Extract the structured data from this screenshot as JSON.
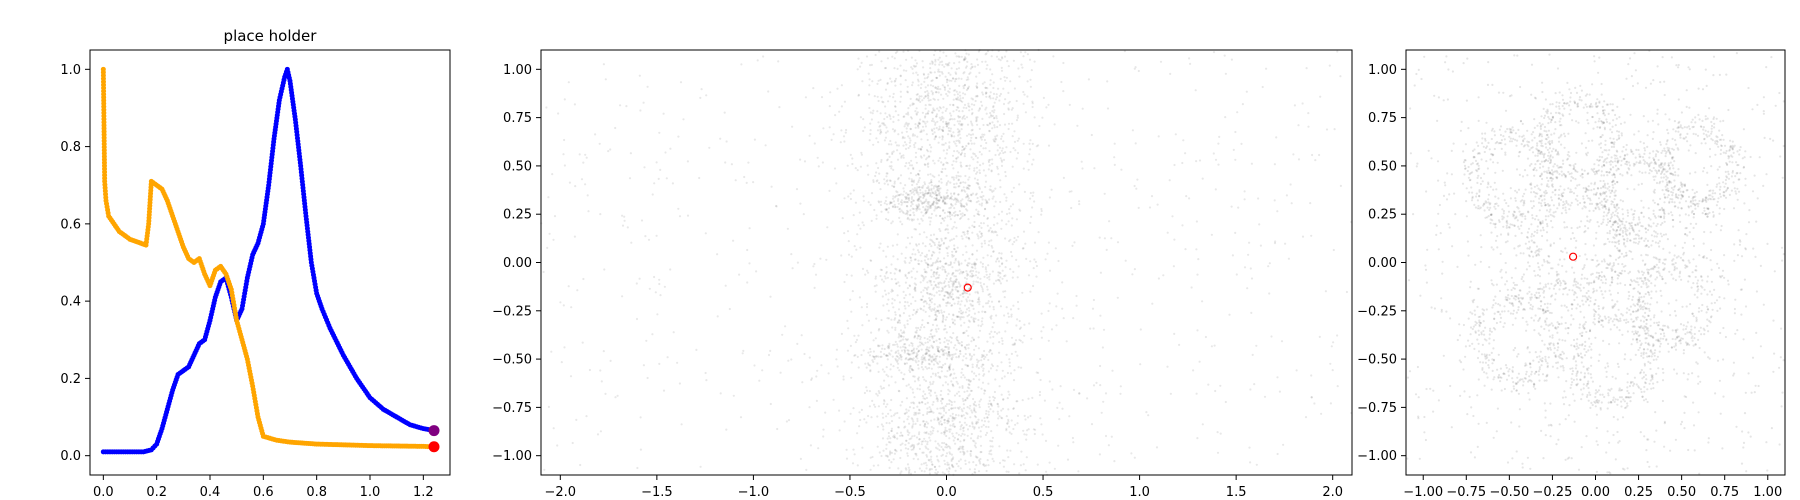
{
  "chart_data": [
    {
      "type": "scatter",
      "title": "place holder",
      "xlabel": "",
      "ylabel": "",
      "xlim": [
        -0.05,
        1.3
      ],
      "ylim": [
        -0.05,
        1.05
      ],
      "xticks": [
        "0.0",
        "0.2",
        "0.4",
        "0.6",
        "0.8",
        "1.0",
        "1.2"
      ],
      "yticks": [
        "0.0",
        "0.2",
        "0.4",
        "0.6",
        "0.8",
        "1.0"
      ],
      "grid": false,
      "series": [
        {
          "color": "#0000ff",
          "x": [
            0.0,
            0.05,
            0.1,
            0.15,
            0.18,
            0.2,
            0.22,
            0.24,
            0.26,
            0.28,
            0.3,
            0.32,
            0.34,
            0.36,
            0.38,
            0.4,
            0.42,
            0.44,
            0.46,
            0.48,
            0.5,
            0.52,
            0.54,
            0.56,
            0.58,
            0.6,
            0.62,
            0.64,
            0.66,
            0.68,
            0.69,
            0.7,
            0.72,
            0.74,
            0.76,
            0.78,
            0.8,
            0.82,
            0.85,
            0.9,
            0.95,
            1.0,
            1.05,
            1.1,
            1.15,
            1.2,
            1.24
          ],
          "y": [
            0.01,
            0.01,
            0.01,
            0.01,
            0.015,
            0.03,
            0.07,
            0.12,
            0.17,
            0.21,
            0.22,
            0.23,
            0.26,
            0.29,
            0.3,
            0.35,
            0.41,
            0.45,
            0.46,
            0.41,
            0.35,
            0.38,
            0.46,
            0.52,
            0.55,
            0.6,
            0.7,
            0.82,
            0.92,
            0.98,
            1.0,
            0.97,
            0.87,
            0.75,
            0.62,
            0.5,
            0.42,
            0.38,
            0.33,
            0.26,
            0.2,
            0.15,
            0.12,
            0.1,
            0.08,
            0.07,
            0.065
          ]
        },
        {
          "color": "#ffa500",
          "x": [
            0.0,
            0.005,
            0.01,
            0.02,
            0.04,
            0.06,
            0.08,
            0.1,
            0.12,
            0.14,
            0.16,
            0.17,
            0.18,
            0.2,
            0.22,
            0.24,
            0.26,
            0.28,
            0.3,
            0.32,
            0.34,
            0.36,
            0.38,
            0.4,
            0.42,
            0.44,
            0.46,
            0.48,
            0.5,
            0.52,
            0.54,
            0.56,
            0.58,
            0.6,
            0.65,
            0.7,
            0.8,
            0.9,
            1.0,
            1.1,
            1.2,
            1.24
          ],
          "y": [
            1.0,
            0.71,
            0.66,
            0.62,
            0.6,
            0.58,
            0.57,
            0.56,
            0.555,
            0.55,
            0.545,
            0.6,
            0.71,
            0.7,
            0.69,
            0.66,
            0.62,
            0.58,
            0.54,
            0.51,
            0.5,
            0.51,
            0.47,
            0.44,
            0.48,
            0.49,
            0.47,
            0.43,
            0.35,
            0.3,
            0.25,
            0.18,
            0.1,
            0.05,
            0.04,
            0.035,
            0.03,
            0.028,
            0.026,
            0.025,
            0.024,
            0.023
          ]
        }
      ],
      "highlights": [
        {
          "x": 1.24,
          "y": 0.065,
          "color": "#800080"
        },
        {
          "x": 1.24,
          "y": 0.023,
          "color": "#ff0000"
        }
      ]
    },
    {
      "type": "scatter",
      "title": "",
      "xlabel": "",
      "ylabel": "",
      "xlim": [
        -2.1,
        2.1
      ],
      "ylim": [
        -1.1,
        1.1
      ],
      "xticks": [
        "−2.0",
        "−1.5",
        "−1.0",
        "−0.5",
        "0.0",
        "0.5",
        "1.0",
        "1.5",
        "2.0"
      ],
      "yticks": [
        "−1.00",
        "−0.75",
        "−0.50",
        "−0.25",
        "0.00",
        "0.25",
        "0.50",
        "0.75",
        "1.00"
      ],
      "grid": false,
      "density_color": "#000000",
      "marker": {
        "x": 0.11,
        "y": -0.13,
        "color": "#ff0000"
      }
    },
    {
      "type": "scatter",
      "title": "",
      "xlabel": "",
      "ylabel": "",
      "xlim": [
        -1.1,
        1.1
      ],
      "ylim": [
        -1.1,
        1.1
      ],
      "xticks": [
        "−1.00",
        "−0.75",
        "−0.50",
        "−0.25",
        "0.00",
        "0.25",
        "0.50",
        "0.75",
        "1.00"
      ],
      "yticks": [
        "−1.00",
        "−0.75",
        "−0.50",
        "−0.25",
        "0.00",
        "0.25",
        "0.50",
        "0.75",
        "1.00"
      ],
      "grid": false,
      "density_color": "#000000",
      "marker": {
        "x": -0.13,
        "y": 0.03,
        "color": "#ff0000"
      }
    }
  ]
}
